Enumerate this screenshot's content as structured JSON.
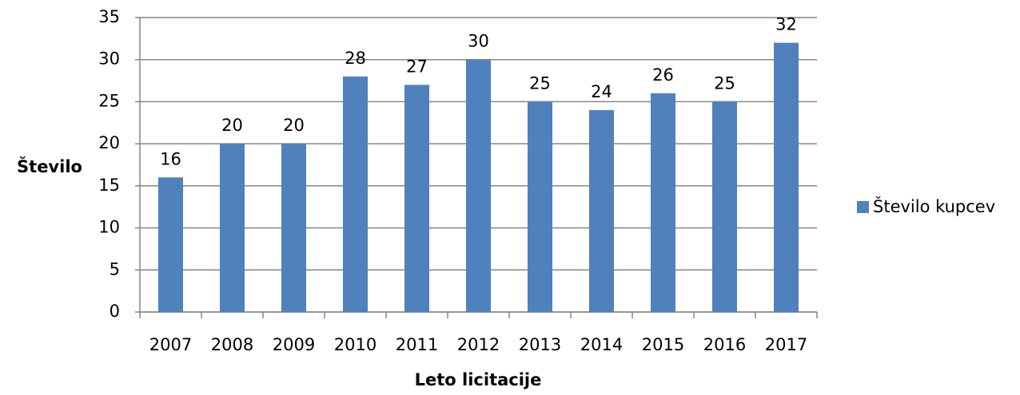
{
  "chart_data": {
    "type": "bar",
    "xlabel": "Leto licitacije",
    "ylabel": "Število",
    "categories": [
      "2007",
      "2008",
      "2009",
      "2010",
      "2011",
      "2012",
      "2013",
      "2014",
      "2015",
      "2016",
      "2017"
    ],
    "series": [
      {
        "name": "Število kupcev",
        "color": "#4f81bd",
        "values": [
          16,
          20,
          20,
          28,
          27,
          30,
          25,
          24,
          26,
          25,
          32
        ]
      }
    ],
    "ylim": [
      0,
      35
    ],
    "yticks": [
      0,
      5,
      10,
      15,
      20,
      25,
      30,
      35
    ],
    "grid": true,
    "data_labels": true,
    "legend": "right"
  }
}
